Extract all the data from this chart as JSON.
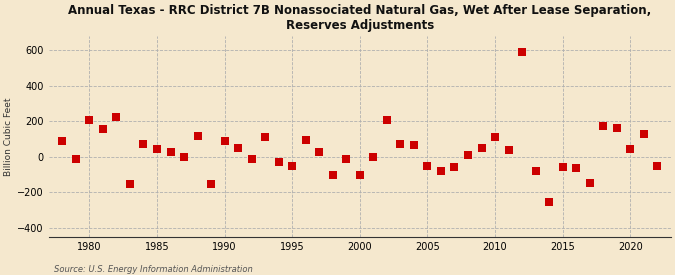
{
  "title": "Annual Texas - RRC District 7B Nonassociated Natural Gas, Wet After Lease Separation,\nReserves Adjustments",
  "ylabel": "Billion Cubic Feet",
  "source": "Source: U.S. Energy Information Administration",
  "background_color": "#f5e8ce",
  "plot_bg_color": "#f5e8ce",
  "years": [
    1978,
    1979,
    1980,
    1981,
    1982,
    1983,
    1984,
    1985,
    1986,
    1987,
    1988,
    1989,
    1990,
    1991,
    1992,
    1993,
    1994,
    1995,
    1996,
    1997,
    1998,
    1999,
    2000,
    2001,
    2002,
    2003,
    2004,
    2005,
    2006,
    2007,
    2008,
    2009,
    2010,
    2011,
    2012,
    2013,
    2014,
    2015,
    2016,
    2017,
    2018,
    2019,
    2020,
    2021,
    2022
  ],
  "values": [
    90,
    -15,
    210,
    155,
    225,
    -155,
    75,
    45,
    30,
    0,
    115,
    -155,
    90,
    50,
    -15,
    110,
    -30,
    -50,
    95,
    30,
    -100,
    -10,
    -100,
    0,
    205,
    70,
    65,
    -50,
    -80,
    -55,
    10,
    50,
    110,
    40,
    590,
    -80,
    -255,
    -60,
    -65,
    -150,
    175,
    160,
    45,
    130,
    -50
  ],
  "marker_color": "#cc0000",
  "marker_size": 28,
  "ylim": [
    -450,
    680
  ],
  "yticks": [
    -400,
    -200,
    0,
    200,
    400,
    600
  ],
  "xlim": [
    1977,
    2023
  ],
  "xticks": [
    1980,
    1985,
    1990,
    1995,
    2000,
    2005,
    2010,
    2015,
    2020
  ]
}
